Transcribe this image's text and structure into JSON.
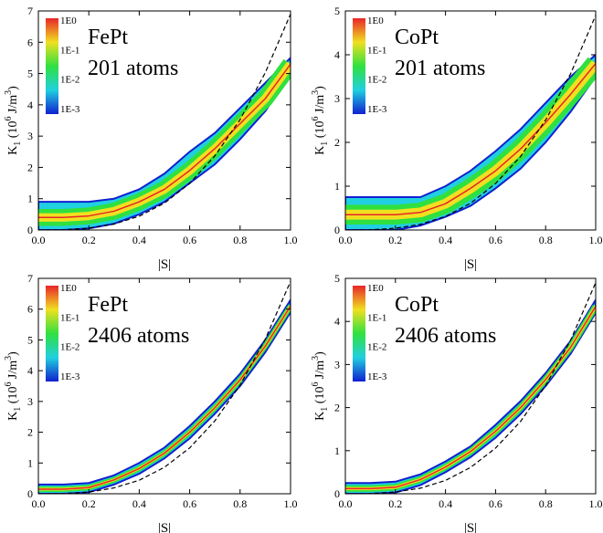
{
  "chart_data": [
    {
      "type": "density",
      "title_lines": [
        "FePt",
        "201 atoms"
      ],
      "x_label": "|S|",
      "y_label": {
        "symbol": "K",
        "sub": "1",
        "pre": " (10",
        "exp": "6",
        "mid": " J/m",
        "exp2": "3",
        "post": ")"
      },
      "colorbar": {
        "labels": [
          "1E0",
          "1E-1",
          "1E-2",
          "1E-3"
        ],
        "colors": [
          "#e8262a",
          "#f0e020",
          "#30e040",
          "#20d0e0",
          "#1020d0"
        ]
      },
      "xlim": [
        0,
        1
      ],
      "ylim": [
        0,
        7
      ],
      "xticks": [
        {
          "value": 0,
          "label": "0.0"
        },
        {
          "value": 0.2,
          "label": "0.2"
        },
        {
          "value": 0.4,
          "label": "0.4"
        },
        {
          "value": 0.6,
          "label": "0.6"
        },
        {
          "value": 0.8,
          "label": "0.8"
        },
        {
          "value": 1,
          "label": "1.0"
        }
      ],
      "yticks": [
        0,
        1,
        2,
        3,
        4,
        5,
        6,
        7
      ],
      "x": [
        0,
        0.1,
        0.2,
        0.3,
        0.4,
        0.5,
        0.6,
        0.7,
        0.8,
        0.9,
        1.0
      ],
      "band": {
        "lower": [
          0,
          0,
          0.05,
          0.2,
          0.5,
          0.9,
          1.5,
          2.1,
          2.9,
          3.8,
          5.0
        ],
        "upper": [
          0.9,
          0.9,
          0.9,
          1.0,
          1.3,
          1.8,
          2.5,
          3.1,
          3.9,
          4.7,
          5.5
        ]
      },
      "core": [
        0.4,
        0.4,
        0.45,
        0.6,
        0.9,
        1.3,
        1.9,
        2.6,
        3.4,
        4.2,
        5.3
      ],
      "dashed": [
        0,
        0.007,
        0.055,
        0.19,
        0.44,
        0.86,
        1.49,
        2.37,
        3.53,
        5.03,
        6.9
      ]
    },
    {
      "type": "density",
      "title_lines": [
        "CoPt",
        "201 atoms"
      ],
      "x_label": "|S|",
      "y_label": {
        "symbol": "K",
        "sub": "1",
        "pre": " (10",
        "exp": "6",
        "mid": " J/m",
        "exp2": "3",
        "post": ")"
      },
      "colorbar": {
        "labels": [
          "1E0",
          "1E-1",
          "1E-2",
          "1E-3"
        ],
        "colors": [
          "#e8262a",
          "#f0e020",
          "#30e040",
          "#20d0e0",
          "#1020d0"
        ]
      },
      "xlim": [
        0,
        1
      ],
      "ylim": [
        0,
        5
      ],
      "xticks": [
        {
          "value": 0,
          "label": "0.0"
        },
        {
          "value": 0.2,
          "label": "0.2"
        },
        {
          "value": 0.4,
          "label": "0.4"
        },
        {
          "value": 0.6,
          "label": "0.6"
        },
        {
          "value": 0.8,
          "label": "0.8"
        },
        {
          "value": 1,
          "label": "1.0"
        }
      ],
      "yticks": [
        0,
        1,
        2,
        3,
        4,
        5
      ],
      "x": [
        0,
        0.1,
        0.2,
        0.3,
        0.4,
        0.5,
        0.6,
        0.7,
        0.8,
        0.9,
        1.0
      ],
      "band": {
        "lower": [
          0,
          0,
          0,
          0.1,
          0.3,
          0.55,
          0.95,
          1.4,
          2.0,
          2.7,
          3.5
        ],
        "upper": [
          0.75,
          0.75,
          0.75,
          0.75,
          1.0,
          1.35,
          1.8,
          2.3,
          2.9,
          3.5,
          4.0
        ]
      },
      "core": [
        0.35,
        0.35,
        0.35,
        0.4,
        0.6,
        0.95,
        1.35,
        1.85,
        2.45,
        3.1,
        3.8
      ],
      "dashed": [
        0,
        0.005,
        0.04,
        0.13,
        0.31,
        0.61,
        1.06,
        1.68,
        2.51,
        3.57,
        4.9
      ]
    },
    {
      "type": "density",
      "title_lines": [
        "FePt",
        "2406 atoms"
      ],
      "x_label": "|S|",
      "y_label": {
        "symbol": "K",
        "sub": "1",
        "pre": " (10",
        "exp": "6",
        "mid": " J/m",
        "exp2": "3",
        "post": ")"
      },
      "colorbar": {
        "labels": [
          "1E0",
          "1E-1",
          "1E-2",
          "1E-3"
        ],
        "colors": [
          "#e8262a",
          "#f0e020",
          "#30e040",
          "#20d0e0",
          "#1020d0"
        ]
      },
      "xlim": [
        0,
        1
      ],
      "ylim": [
        0,
        7
      ],
      "xticks": [
        {
          "value": 0,
          "label": "0.0"
        },
        {
          "value": 0.2,
          "label": "0.2"
        },
        {
          "value": 0.4,
          "label": "0.4"
        },
        {
          "value": 0.6,
          "label": "0.6"
        },
        {
          "value": 0.8,
          "label": "0.8"
        },
        {
          "value": 1,
          "label": "1.0"
        }
      ],
      "yticks": [
        0,
        1,
        2,
        3,
        4,
        5,
        6,
        7
      ],
      "x": [
        0,
        0.1,
        0.2,
        0.3,
        0.4,
        0.5,
        0.6,
        0.7,
        0.8,
        0.9,
        1.0
      ],
      "band": {
        "lower": [
          0,
          0,
          0.05,
          0.3,
          0.65,
          1.15,
          1.8,
          2.6,
          3.5,
          4.6,
          5.9
        ],
        "upper": [
          0.3,
          0.3,
          0.35,
          0.6,
          1.0,
          1.5,
          2.2,
          3.0,
          3.9,
          5.0,
          6.3
        ]
      },
      "core": [
        0.15,
        0.15,
        0.2,
        0.45,
        0.82,
        1.32,
        2.0,
        2.8,
        3.7,
        4.8,
        6.1
      ],
      "dashed": [
        0,
        0.007,
        0.055,
        0.19,
        0.44,
        0.86,
        1.49,
        2.37,
        3.53,
        5.03,
        6.9
      ]
    },
    {
      "type": "density",
      "title_lines": [
        "CoPt",
        "2406 atoms"
      ],
      "x_label": "|S|",
      "y_label": {
        "symbol": "K",
        "sub": "1",
        "pre": " (10",
        "exp": "6",
        "mid": " J/m",
        "exp2": "3",
        "post": ")"
      },
      "colorbar": {
        "labels": [
          "1E0",
          "1E-1",
          "1E-2",
          "1E-3"
        ],
        "colors": [
          "#e8262a",
          "#f0e020",
          "#30e040",
          "#20d0e0",
          "#1020d0"
        ]
      },
      "xlim": [
        0,
        1
      ],
      "ylim": [
        0,
        5
      ],
      "xticks": [
        {
          "value": 0,
          "label": "0.0"
        },
        {
          "value": 0.2,
          "label": "0.2"
        },
        {
          "value": 0.4,
          "label": "0.4"
        },
        {
          "value": 0.6,
          "label": "0.6"
        },
        {
          "value": 0.8,
          "label": "0.8"
        },
        {
          "value": 1,
          "label": "1.0"
        }
      ],
      "yticks": [
        0,
        1,
        2,
        3,
        4,
        5
      ],
      "x": [
        0,
        0.1,
        0.2,
        0.3,
        0.4,
        0.5,
        0.6,
        0.7,
        0.8,
        0.9,
        1.0
      ],
      "band": {
        "lower": [
          0,
          0,
          0.03,
          0.2,
          0.5,
          0.85,
          1.3,
          1.85,
          2.5,
          3.25,
          4.2
        ],
        "upper": [
          0.25,
          0.25,
          0.28,
          0.45,
          0.75,
          1.1,
          1.6,
          2.15,
          2.8,
          3.55,
          4.5
        ]
      },
      "core": [
        0.12,
        0.12,
        0.15,
        0.33,
        0.62,
        0.98,
        1.45,
        2.0,
        2.65,
        3.4,
        4.35
      ],
      "dashed": [
        0,
        0.005,
        0.04,
        0.13,
        0.31,
        0.61,
        1.06,
        1.68,
        2.51,
        3.57,
        4.9
      ]
    }
  ]
}
